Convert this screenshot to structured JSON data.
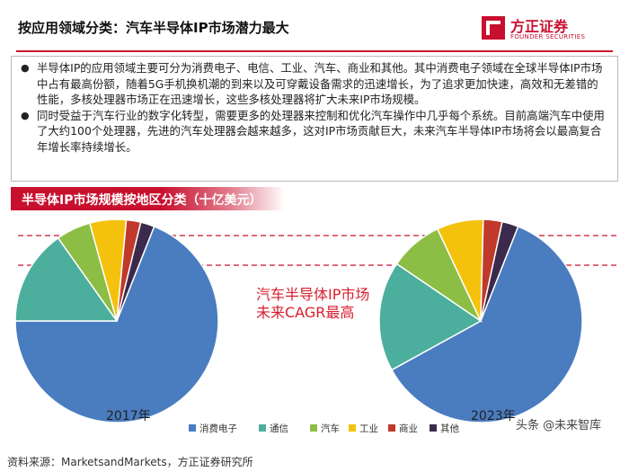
{
  "header": {
    "title": "按应用领域分类：汽车半导体IP市场潜力最大",
    "logo_cn": "方正证券",
    "logo_en": "FOUNDER SECURITIES",
    "brand_color": "#c8102e"
  },
  "bullets": [
    "半导体IP的应用领域主要可分为消费电子、电信、工业、汽车、商业和其他。其中消费电子领域在全球半导体IP市场中占有最高份额，随着5G手机换机潮的到来以及可穿戴设备需求的迅速增长，为了追求更加快速，高效和无差错的性能，多核处理器市场正在迅速增长，这些多核处理器将扩大未来IP市场规模。",
    "同时受益于汽车行业的数字化转型，需要更多的处理器来控制和优化汽车操作中几乎每个系统。目前高端汽车中使用了大约100个处理器，先进的汽车处理器会越来越多，这对IP市场贡献巨大，未来汽车半导体IP市场将会以最高复合年增长率持续增长。"
  ],
  "banner_title": "半导体IP市场规模按地区分类（十亿美元）",
  "annotation": [
    "汽车半导体IP市场",
    "未来CAGR最高"
  ],
  "chart_data": {
    "type": "pie",
    "legend": [
      "消费电子",
      "通信",
      "汽车",
      "工业",
      "商业",
      "其他"
    ],
    "colors": [
      "#4a7cc0",
      "#4cae9c",
      "#8cbd45",
      "#f4c20d",
      "#c0392b",
      "#3c2a4d"
    ],
    "legend_position": "bottom",
    "charts": [
      {
        "label": "2017年",
        "values": [
          69,
          15.2,
          5.5,
          5.8,
          2.3,
          2.2
        ]
      },
      {
        "label": "2023年",
        "values": [
          61,
          17.5,
          8.5,
          7.4,
          3.0,
          2.6
        ]
      }
    ]
  },
  "source": "资料来源：MarketsandMarkets，方正证券研究所",
  "watermark": "头条 @未来智库"
}
